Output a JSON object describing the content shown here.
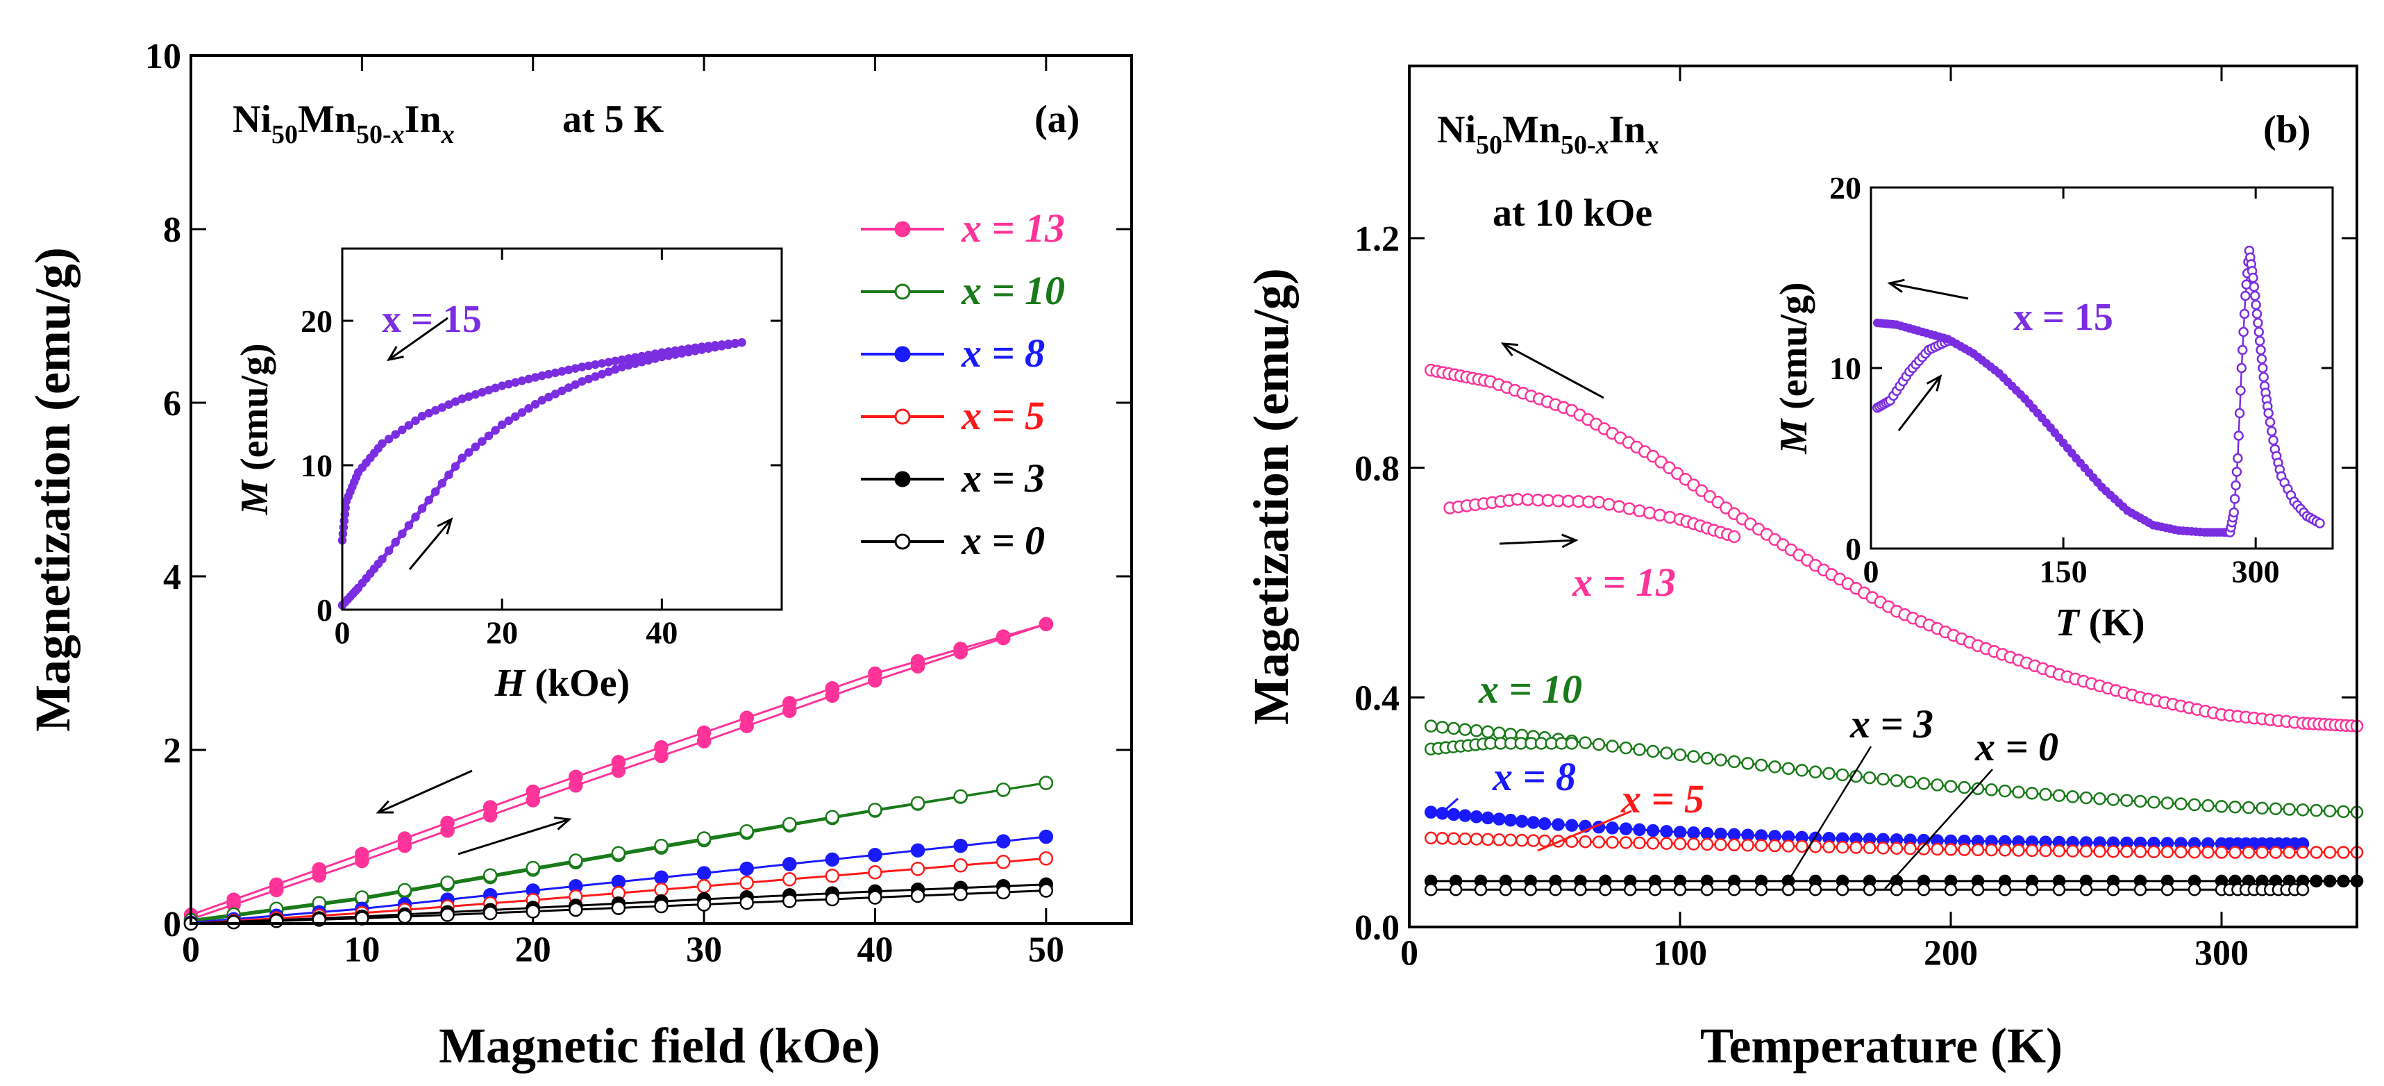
{
  "colors": {
    "x13": "#ff3399",
    "x10": "#1a7a1a",
    "x8": "#1a1aff",
    "x5": "#ff1a1a",
    "x3": "#000000",
    "x0": "#000000",
    "x15": "#7a2ee0"
  },
  "chart_data": [
    {
      "panel": "(a)",
      "type": "line",
      "title_parts": [
        "Ni",
        "50",
        "Mn",
        "50-",
        "x",
        "In",
        "x"
      ],
      "subtitle": "at 5 K",
      "xlabel": "Magnetic field (kOe)",
      "ylabel": "Magnetization (emu/g)",
      "xlim": [
        0,
        55
      ],
      "ylim": [
        0,
        10
      ],
      "xticks": [
        0,
        10,
        20,
        30,
        40,
        50
      ],
      "yticks": [
        0,
        2,
        4,
        6,
        8,
        10
      ],
      "legend_pos": "right",
      "series": [
        {
          "name": "x = 13",
          "key": "x13",
          "filled": true,
          "x": [
            0,
            10,
            20,
            30,
            40,
            50
          ],
          "values": [
            0.05,
            0.72,
            1.42,
            2.1,
            2.8,
            3.45
          ],
          "values_desc": [
            0.1,
            0.8,
            1.52,
            2.2,
            2.88,
            3.45
          ]
        },
        {
          "name": "x = 10",
          "key": "x10",
          "filled": false,
          "x": [
            0,
            10,
            20,
            30,
            40,
            50
          ],
          "values": [
            0.02,
            0.28,
            0.62,
            0.96,
            1.3,
            1.62
          ],
          "values_desc": [
            0.04,
            0.3,
            0.64,
            0.98,
            1.31,
            1.62
          ]
        },
        {
          "name": "x = 8",
          "key": "x8",
          "filled": true,
          "x": [
            0,
            10,
            20,
            30,
            40,
            50
          ],
          "values": [
            0.01,
            0.17,
            0.38,
            0.58,
            0.79,
            1.0
          ]
        },
        {
          "name": "x = 5",
          "key": "x5",
          "filled": false,
          "x": [
            0,
            10,
            20,
            30,
            40,
            50
          ],
          "values": [
            0.0,
            0.12,
            0.27,
            0.43,
            0.59,
            0.75
          ]
        },
        {
          "name": "x = 3",
          "key": "x3",
          "filled": true,
          "x": [
            0,
            10,
            20,
            30,
            40,
            50
          ],
          "values": [
            0.0,
            0.08,
            0.18,
            0.28,
            0.37,
            0.45
          ]
        },
        {
          "name": "x = 0",
          "key": "x0",
          "filled": false,
          "x": [
            0,
            10,
            20,
            30,
            40,
            50
          ],
          "values": [
            0.0,
            0.06,
            0.14,
            0.22,
            0.3,
            0.38
          ]
        }
      ],
      "inset": {
        "xlabel_var": "H",
        "xlabel_unit": " (kOe)",
        "ylabel_var": "M",
        "ylabel_unit": " (emu/g)",
        "xlim": [
          0,
          55
        ],
        "ylim": [
          0,
          25
        ],
        "xticks": [
          0,
          20,
          40
        ],
        "yticks": [
          0,
          10,
          20
        ],
        "label": "x = 15",
        "ascending": {
          "x": [
            0,
            2,
            5,
            10,
            15,
            20,
            25,
            30,
            35,
            40,
            45,
            50
          ],
          "values": [
            0.3,
            1.5,
            3.5,
            7.0,
            10.5,
            12.8,
            14.5,
            15.8,
            16.8,
            17.5,
            18.0,
            18.5
          ]
        },
        "descending": {
          "x": [
            50,
            45,
            40,
            35,
            30,
            25,
            20,
            15,
            10,
            5,
            2,
            0.5,
            0
          ],
          "values": [
            18.5,
            18.2,
            17.8,
            17.3,
            16.8,
            16.2,
            15.5,
            14.6,
            13.4,
            11.5,
            9.5,
            7.5,
            4.8
          ]
        }
      }
    },
    {
      "panel": "(b)",
      "type": "line",
      "title_parts": [
        "Ni",
        "50",
        "Mn",
        "50-",
        "x",
        "In",
        "x"
      ],
      "subtitle": "at 10 kOe",
      "xlabel": "Temperature (K)",
      "ylabel": "Magetization (emu/g)",
      "xlim": [
        0,
        350
      ],
      "ylim": [
        0,
        1.5
      ],
      "xticks": [
        0,
        100,
        200,
        300
      ],
      "yticks": [
        0.0,
        0.4,
        0.8,
        1.2
      ],
      "ytick_labels": [
        "0.0",
        "0.4",
        "0.8",
        "1.2"
      ],
      "series": [
        {
          "name": "x = 13",
          "key": "x13",
          "filled": false,
          "x": [
            8,
            30,
            60,
            90,
            120,
            150,
            180,
            210,
            240,
            270,
            300,
            330,
            350
          ],
          "values": [
            0.97,
            0.95,
            0.9,
            0.82,
            0.72,
            0.63,
            0.55,
            0.49,
            0.44,
            0.4,
            0.37,
            0.355,
            0.35
          ],
          "fc_x": [
            15,
            40,
            70,
            100,
            120
          ],
          "fc_values": [
            0.73,
            0.745,
            0.74,
            0.71,
            0.68
          ]
        },
        {
          "name": "x = 10",
          "key": "x10",
          "filled": false,
          "x": [
            8,
            50,
            100,
            150,
            200,
            250,
            300,
            350
          ],
          "values": [
            0.35,
            0.33,
            0.3,
            0.27,
            0.245,
            0.225,
            0.21,
            0.2
          ],
          "fc_x": [
            8,
            30,
            60
          ],
          "fc_values": [
            0.31,
            0.32,
            0.32
          ]
        },
        {
          "name": "x = 8",
          "key": "x8",
          "filled": true,
          "x": [
            8,
            50,
            100,
            150,
            200,
            250,
            300,
            330
          ],
          "values": [
            0.2,
            0.18,
            0.165,
            0.155,
            0.15,
            0.147,
            0.145,
            0.145
          ]
        },
        {
          "name": "x = 5",
          "key": "x5",
          "filled": false,
          "x": [
            8,
            50,
            100,
            150,
            200,
            250,
            300,
            350
          ],
          "values": [
            0.155,
            0.15,
            0.145,
            0.14,
            0.135,
            0.132,
            0.13,
            0.13
          ]
        },
        {
          "name": "x = 3",
          "key": "x3",
          "filled": true,
          "x": [
            8,
            100,
            200,
            300,
            350
          ],
          "values": [
            0.08,
            0.08,
            0.08,
            0.08,
            0.08
          ]
        },
        {
          "name": "x = 0",
          "key": "x0",
          "filled": false,
          "x": [
            8,
            100,
            200,
            300,
            330
          ],
          "values": [
            0.065,
            0.065,
            0.065,
            0.065,
            0.065
          ]
        }
      ],
      "labels": {
        "x13": "x = 13",
        "x10": "x = 10",
        "x8": "x = 8",
        "x5": "x = 5",
        "x3": "x = 3",
        "x0": "x = 0"
      },
      "inset": {
        "xlabel_var": "T",
        "xlabel_unit": " (K)",
        "ylabel_var": "M",
        "ylabel_unit": " (emu/g)",
        "xlim": [
          0,
          360
        ],
        "ylim": [
          0,
          20
        ],
        "xticks": [
          0,
          150,
          300
        ],
        "yticks": [
          0,
          10,
          20
        ],
        "label": "x = 15",
        "fc": {
          "x": [
            5,
            15,
            30,
            45,
            60
          ],
          "values": [
            7.8,
            8.2,
            9.8,
            11.0,
            11.5
          ]
        },
        "fh": {
          "x": [
            5,
            20,
            40,
            60,
            80,
            100,
            120,
            140,
            160,
            180,
            200,
            220,
            240,
            260,
            275,
            280
          ],
          "values": [
            12.5,
            12.4,
            12.0,
            11.6,
            10.8,
            9.7,
            8.3,
            6.7,
            5.0,
            3.4,
            2.1,
            1.3,
            1.0,
            0.9,
            0.9,
            0.9
          ]
        },
        "peak": {
          "x": [
            280,
            283,
            286,
            289,
            292,
            295,
            298,
            301,
            304,
            307,
            310,
            315,
            320,
            330,
            340,
            350
          ],
          "values": [
            0.9,
            2.0,
            5.0,
            10.0,
            14.0,
            16.5,
            15.0,
            13.0,
            11.0,
            9.0,
            7.5,
            5.5,
            4.0,
            2.6,
            1.8,
            1.4
          ]
        }
      }
    }
  ]
}
